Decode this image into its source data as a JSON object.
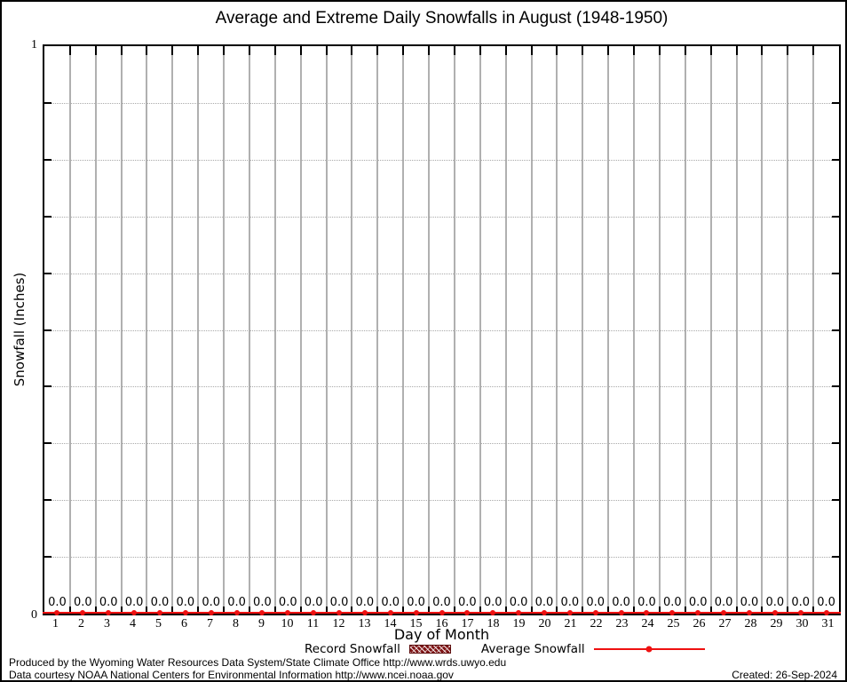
{
  "title": "Average and Extreme Daily Snowfalls in August (1948-1950)",
  "chart_data": {
    "type": "line",
    "title": "Average and Extreme Daily Snowfalls in August (1948-1950)",
    "xlabel": "Day of Month",
    "ylabel": "Snowfall (Inches)",
    "ylim": [
      0,
      1
    ],
    "xcategories": [
      1,
      2,
      3,
      4,
      5,
      6,
      7,
      8,
      9,
      10,
      11,
      12,
      13,
      14,
      15,
      16,
      17,
      18,
      19,
      20,
      21,
      22,
      23,
      24,
      25,
      26,
      27,
      28,
      29,
      30,
      31
    ],
    "yticks_major": [
      0,
      1
    ],
    "yticks_minor": [
      0.1,
      0.2,
      0.3,
      0.4,
      0.5,
      0.6,
      0.7,
      0.8,
      0.9
    ],
    "grid": "vertical-solid-gray-per-day, horizontal-dotted-per-0.1",
    "legend_position": "bottom-center",
    "series": [
      {
        "name": "Record Snowfall",
        "style": "bar-hatched",
        "color": "#7f1516",
        "values": [
          0,
          0,
          0,
          0,
          0,
          0,
          0,
          0,
          0,
          0,
          0,
          0,
          0,
          0,
          0,
          0,
          0,
          0,
          0,
          0,
          0,
          0,
          0,
          0,
          0,
          0,
          0,
          0,
          0,
          0,
          0
        ]
      },
      {
        "name": "Average Snowfall",
        "style": "line-with-points",
        "color": "#ee1111",
        "values": [
          0,
          0,
          0,
          0,
          0,
          0,
          0,
          0,
          0,
          0,
          0,
          0,
          0,
          0,
          0,
          0,
          0,
          0,
          0,
          0,
          0,
          0,
          0,
          0,
          0,
          0,
          0,
          0,
          0,
          0,
          0
        ]
      }
    ],
    "point_labels": [
      "0.0",
      "0.0",
      "0.0",
      "0.0",
      "0.0",
      "0.0",
      "0.0",
      "0.0",
      "0.0",
      "0.0",
      "0.0",
      "0.0",
      "0.0",
      "0.0",
      "0.0",
      "0.0",
      "0.0",
      "0.0",
      "0.0",
      "0.0",
      "0.0",
      "0.0",
      "0.0",
      "0.0",
      "0.0",
      "0.0",
      "0.0",
      "0.0",
      "0.0",
      "0.0",
      "0.0"
    ]
  },
  "axes": {
    "y_top_label": "1",
    "y_bottom_label": "0"
  },
  "legend": {
    "items": [
      {
        "label": "Record Snowfall",
        "swatch": "hatched-box"
      },
      {
        "label": "Average Snowfall",
        "swatch": "line-with-point"
      }
    ]
  },
  "footer": {
    "line1": "Produced by the Wyoming Water Resources Data System/State Climate Office http://www.wrds.uwyo.edu",
    "line2": "Data courtesy NOAA National Centers for Environmental Information http://www.ncei.noaa.gov",
    "created": "Created: 26-Sep-2024"
  },
  "colors": {
    "series_red": "#ee1111",
    "record_dark_red": "#7f1516",
    "grid_gray": "#b0b0b0",
    "axis_black": "#000000"
  }
}
